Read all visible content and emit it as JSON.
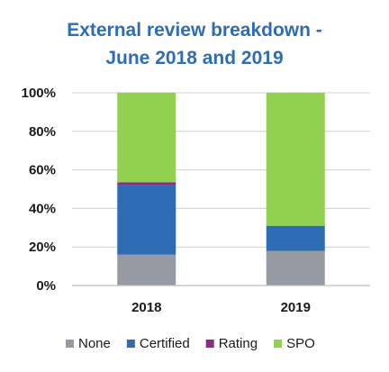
{
  "chart_data": {
    "type": "bar",
    "stacked": true,
    "title": [
      "External review breakdown -",
      "June 2018 and 2019"
    ],
    "categories": [
      "2018",
      "2019"
    ],
    "ylim": [
      0,
      100
    ],
    "yticks": [
      0,
      20,
      40,
      60,
      80,
      100
    ],
    "ytick_labels": [
      "0%",
      "20%",
      "40%",
      "60%",
      "80%",
      "100%"
    ],
    "grid": true,
    "legend_position": "bottom",
    "series": [
      {
        "name": "None",
        "color": "#969aa3",
        "values": [
          16,
          18
        ]
      },
      {
        "name": "Certified",
        "color": "#2e6db4",
        "values": [
          36,
          13
        ]
      },
      {
        "name": "Rating",
        "color": "#8e2a8c",
        "values": [
          1.5,
          0
        ]
      },
      {
        "name": "SPO",
        "color": "#92d050",
        "values": [
          46.5,
          69
        ]
      }
    ]
  }
}
